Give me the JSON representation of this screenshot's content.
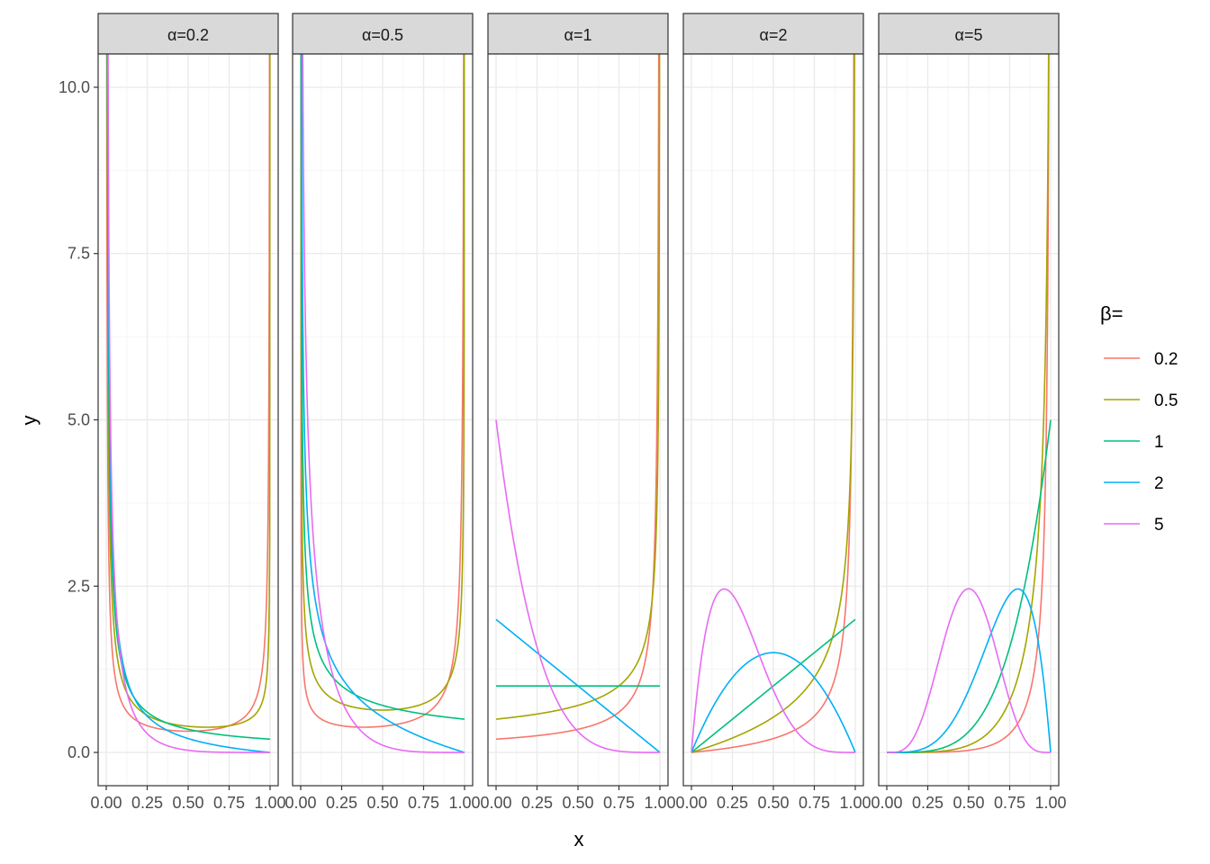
{
  "chart_data": {
    "type": "line",
    "title": "",
    "xlabel": "x",
    "ylabel": "y",
    "xlim": [
      0,
      1
    ],
    "ylim": [
      -0.5,
      10.5
    ],
    "x_ticks": [
      0.0,
      0.25,
      0.5,
      0.75,
      1.0
    ],
    "x_tick_labels": [
      "0.00",
      "0.25",
      "0.50",
      "0.75",
      "1.00"
    ],
    "y_ticks": [
      0,
      2.5,
      5,
      7.5,
      10
    ],
    "y_tick_labels": [
      "0.0",
      "2.5",
      "5.0",
      "7.5",
      "10.0"
    ],
    "grid": true,
    "legend": {
      "title": "β=",
      "placement": "right",
      "entries": [
        {
          "label": "0.2",
          "beta": 0.2,
          "color": "#F8766D"
        },
        {
          "label": "0.5",
          "beta": 0.5,
          "color": "#A3A500"
        },
        {
          "label": "1",
          "beta": 1,
          "color": "#00BF7D"
        },
        {
          "label": "2",
          "beta": 2,
          "color": "#00B0F6"
        },
        {
          "label": "5",
          "beta": 5,
          "color": "#E76BF3"
        }
      ]
    },
    "facets": [
      {
        "label": "α=0.2",
        "alpha": 0.2
      },
      {
        "label": "α=0.5",
        "alpha": 0.5
      },
      {
        "label": "α=1",
        "alpha": 1
      },
      {
        "label": "α=2",
        "alpha": 2
      },
      {
        "label": "α=5",
        "alpha": 5
      }
    ],
    "function": "Beta density y = x^(α-1)(1-x)^(β-1)/B(α,β)"
  },
  "colors": {
    "strip_bg": "#D9D9D9",
    "panel_border": "#333333",
    "grid_major": "#EBEBEB",
    "grid_minor": "#F5F5F5",
    "axis_text": "#4D4D4D"
  }
}
